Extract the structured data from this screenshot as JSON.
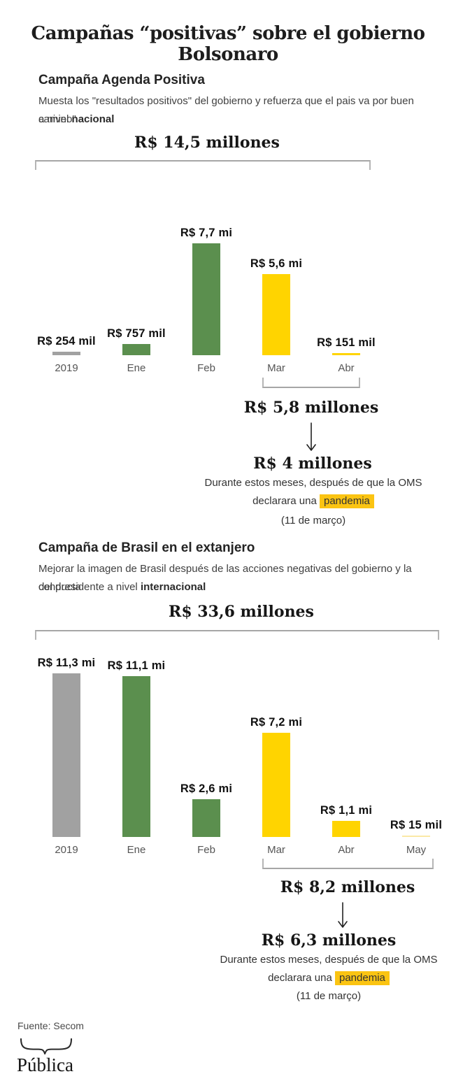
{
  "title": "Campañas “positivas” sobre el gobierno Bolsonaro",
  "sections": [
    {
      "heading": "Campaña Agenda Positiva",
      "description": {
        "line1": "Muesta los \"resultados positivos\" del gobierno y refuerza que el pais va por buen camino\"",
        "line2_prefix": "a nivel ",
        "line2_bold": "nacional"
      },
      "note": {
        "line1": "Durante estos meses, después de que la OMS",
        "line2_prefix": "declarara una ",
        "line2_highlight": "pandemia",
        "line3": "(11 de março)"
      }
    },
    {
      "heading": "Campaña de Brasil en el extanjero",
      "description": {
        "line1": "Mejorar la imagen de Brasil después de las acciones negativas del gobierno y la conducta",
        "line2_prefix": "del presidente a nivel ",
        "line2_bold": "internacional"
      },
      "note": {
        "line1": "Durante estos meses, después de que la OMS",
        "line2_prefix": "declarara una ",
        "line2_highlight": "pandemia",
        "line3": "(11 de março)"
      }
    }
  ],
  "chart_data": [
    {
      "type": "bar",
      "title": "Campaña Agenda Positiva",
      "categories": [
        "2019",
        "Ene",
        "Feb",
        "Mar",
        "Abr"
      ],
      "values_millions": [
        0.254,
        0.757,
        7.7,
        5.6,
        0.151
      ],
      "value_labels": [
        "R$ 254 mil",
        "R$ 757 mil",
        "R$ 7,7 mi",
        "R$ 5,6 mi",
        "R$ 151 mil"
      ],
      "bar_colors": [
        "#a1a1a1",
        "#5b8f4e",
        "#5b8f4e",
        "#ffd400",
        "#ffd400"
      ],
      "total_label": "R$ 14,5 millones",
      "total_value_millions": 14.5,
      "subtotal_label": "R$ 5,8 millones",
      "subtotal_value_millions": 5.8,
      "subtotal_span": [
        "Mar",
        "Abr"
      ],
      "post_label": "R$ 4 millones",
      "post_value_millions": 4,
      "grid": false,
      "legend": false,
      "axis": "none"
    },
    {
      "type": "bar",
      "title": "Campaña de Brasil en el extanjero",
      "categories": [
        "2019",
        "Ene",
        "Feb",
        "Mar",
        "Abr",
        "May"
      ],
      "values_millions": [
        11.3,
        11.1,
        2.6,
        7.2,
        1.1,
        0.015
      ],
      "value_labels": [
        "R$ 11,3 mi",
        "R$ 11,1 mi",
        "R$ 2,6 mi",
        "R$ 7,2 mi",
        "R$ 1,1 mi",
        "R$ 15 mil"
      ],
      "bar_colors": [
        "#a1a1a1",
        "#5b8f4e",
        "#5b8f4e",
        "#ffd400",
        "#ffd400",
        "#fbe9a6"
      ],
      "total_label": "R$ 33,6 millones",
      "total_value_millions": 33.6,
      "subtotal_label": "R$ 8,2 millones",
      "subtotal_value_millions": 8.2,
      "subtotal_span": [
        "Mar",
        "Abr",
        "May"
      ],
      "post_label": "R$ 6,3 millones",
      "post_value_millions": 6.3,
      "grid": false,
      "legend": false,
      "axis": "none"
    }
  ],
  "footer": {
    "source": "Fuente: Secom",
    "logo": "Pública"
  },
  "colors": {
    "green": "#5b8f4e",
    "yellow": "#ffd400",
    "gray": "#a1a1a1",
    "pale_yellow": "#fbe9a6",
    "highlight": "#fbc412",
    "bracket": "#a6a6a6"
  }
}
